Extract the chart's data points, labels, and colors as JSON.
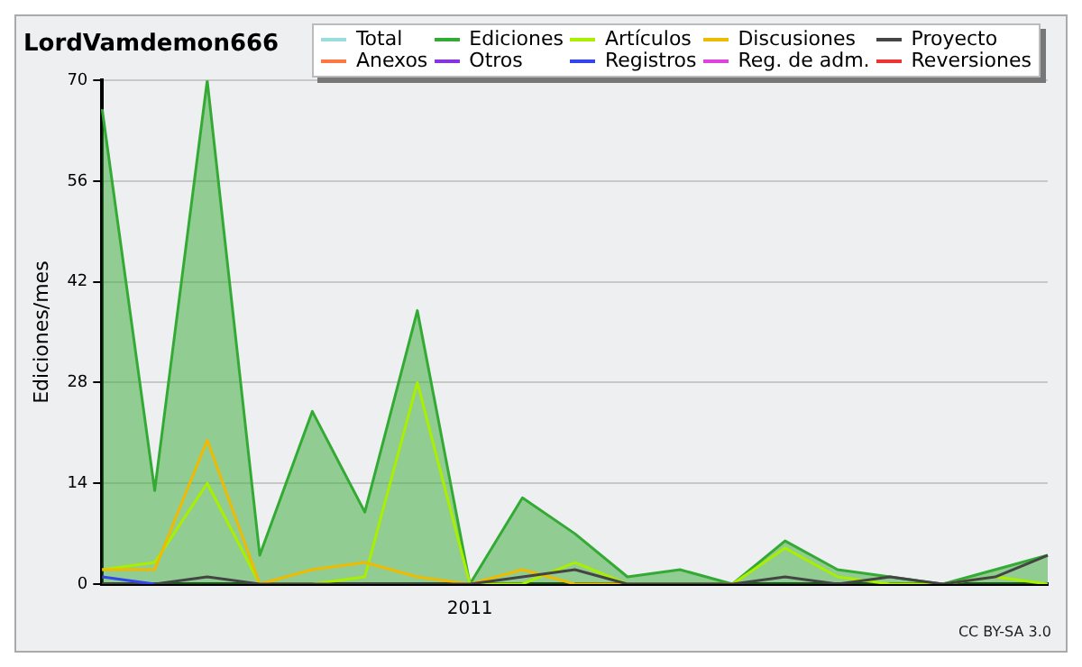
{
  "chart_data": {
    "type": "line",
    "title": "LordVamdemon666",
    "ylabel": "Ediciones/mes",
    "categories": [
      null,
      null,
      null,
      null,
      null,
      null,
      null,
      "2011",
      null,
      null,
      null,
      null,
      null,
      null,
      null,
      null,
      null,
      null,
      null
    ],
    "series": [
      {
        "name": "Total",
        "color": "#99dddd",
        "values": [
          null,
          null,
          null,
          null,
          null,
          null,
          null,
          null,
          null,
          null,
          null,
          null,
          null,
          null,
          null,
          null,
          null,
          null,
          null
        ]
      },
      {
        "name": "Ediciones",
        "type": "area",
        "color": "#33aa33",
        "values": [
          66,
          13,
          70,
          4,
          24,
          10,
          38,
          0,
          12,
          7,
          1,
          2,
          0,
          6,
          2,
          1,
          0,
          2,
          4
        ]
      },
      {
        "name": "Artículos",
        "color": "#aaee00",
        "values": [
          2,
          3,
          14,
          0,
          0,
          1,
          28,
          0,
          0,
          3,
          0,
          0,
          0,
          5,
          1,
          0,
          0,
          1,
          0
        ]
      },
      {
        "name": "Discusiones",
        "color": "#eebb00",
        "values": [
          2,
          2,
          20,
          0,
          2,
          3,
          1,
          0,
          2,
          0,
          0,
          null,
          null,
          null,
          null,
          null,
          null,
          null,
          null
        ]
      },
      {
        "name": "Proyecto",
        "color": "#444444",
        "values": [
          0,
          0,
          1,
          0,
          0,
          0,
          0,
          0,
          1,
          2,
          0,
          0,
          0,
          1,
          0,
          1,
          0,
          1,
          4
        ]
      },
      {
        "name": "Anexos",
        "color": "#ff7744",
        "values": [
          null,
          null,
          null,
          null,
          null,
          null,
          null,
          null,
          null,
          null,
          null,
          null,
          null,
          null,
          null,
          null,
          null,
          null,
          null
        ]
      },
      {
        "name": "Otros",
        "color": "#8833dd",
        "values": [
          null,
          null,
          null,
          null,
          null,
          null,
          null,
          null,
          null,
          null,
          null,
          null,
          null,
          null,
          null,
          null,
          null,
          null,
          null
        ]
      },
      {
        "name": "Registros",
        "color": "#3344ee",
        "values": [
          1,
          0,
          null,
          null,
          null,
          null,
          null,
          null,
          null,
          null,
          null,
          null,
          null,
          null,
          null,
          null,
          null,
          null,
          null
        ]
      },
      {
        "name": "Reg. de adm.",
        "color": "#dd44dd",
        "values": [
          null,
          null,
          null,
          null,
          null,
          null,
          null,
          null,
          null,
          null,
          null,
          null,
          null,
          null,
          null,
          null,
          null,
          null,
          null
        ]
      },
      {
        "name": "Reversiones",
        "color": "#ee3333",
        "values": [
          null,
          null,
          null,
          null,
          null,
          null,
          null,
          null,
          null,
          null,
          null,
          null,
          null,
          null,
          null,
          null,
          null,
          null,
          null
        ]
      }
    ],
    "ylim": [
      0,
      70
    ],
    "yticks": [
      0,
      14,
      28,
      42,
      56,
      70
    ],
    "grid": "y",
    "legend": "top right",
    "marker": "none",
    "annotations": [
      "CC BY-SA 3.0"
    ]
  }
}
